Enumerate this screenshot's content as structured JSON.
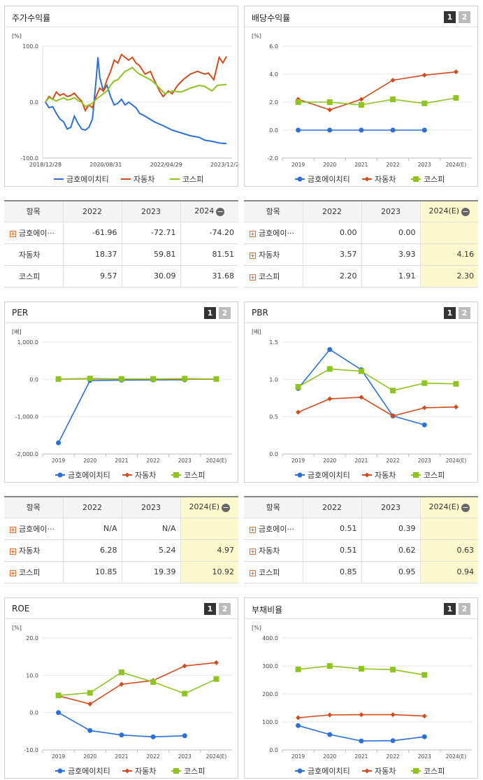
{
  "charts": [
    {
      "title": "주가수익률",
      "unit": "[%]",
      "buttons": [],
      "type": "line",
      "xlabels": [
        "2018/12/28",
        "2020/08/31",
        "2022/04/29",
        "2023/12/28"
      ],
      "ylim": [
        -100,
        100
      ],
      "yticks": [
        "100.0",
        "0.0",
        "-100.0"
      ],
      "legend": [
        "금호에이치티",
        "자동차",
        "코스피"
      ],
      "series": [
        {
          "name": "금호에이치티",
          "color": "#2b6fd8",
          "points": [
            [
              0,
              0
            ],
            [
              0.02,
              -10
            ],
            [
              0.04,
              -8
            ],
            [
              0.06,
              -20
            ],
            [
              0.08,
              -30
            ],
            [
              0.1,
              -35
            ],
            [
              0.12,
              -48
            ],
            [
              0.14,
              -45
            ],
            [
              0.16,
              -25
            ],
            [
              0.18,
              -38
            ],
            [
              0.2,
              -48
            ],
            [
              0.22,
              -50
            ],
            [
              0.24,
              -45
            ],
            [
              0.26,
              -30
            ],
            [
              0.28,
              40
            ],
            [
              0.29,
              80
            ],
            [
              0.3,
              45
            ],
            [
              0.32,
              20
            ],
            [
              0.34,
              30
            ],
            [
              0.36,
              10
            ],
            [
              0.38,
              -5
            ],
            [
              0.4,
              -2
            ],
            [
              0.42,
              5
            ],
            [
              0.44,
              -5
            ],
            [
              0.46,
              0
            ],
            [
              0.5,
              -10
            ],
            [
              0.52,
              -20
            ],
            [
              0.55,
              -25
            ],
            [
              0.6,
              -35
            ],
            [
              0.65,
              -42
            ],
            [
              0.7,
              -50
            ],
            [
              0.75,
              -55
            ],
            [
              0.8,
              -60
            ],
            [
              0.85,
              -63
            ],
            [
              0.88,
              -68
            ],
            [
              0.92,
              -70
            ],
            [
              0.96,
              -73
            ],
            [
              1,
              -74
            ]
          ]
        },
        {
          "name": "자동차",
          "color": "#d44a1a",
          "points": [
            [
              0,
              0
            ],
            [
              0.02,
              10
            ],
            [
              0.04,
              5
            ],
            [
              0.06,
              18
            ],
            [
              0.08,
              12
            ],
            [
              0.1,
              15
            ],
            [
              0.12,
              10
            ],
            [
              0.14,
              12
            ],
            [
              0.16,
              16
            ],
            [
              0.18,
              8
            ],
            [
              0.2,
              2
            ],
            [
              0.22,
              -15
            ],
            [
              0.24,
              -5
            ],
            [
              0.26,
              -10
            ],
            [
              0.28,
              10
            ],
            [
              0.3,
              25
            ],
            [
              0.32,
              20
            ],
            [
              0.34,
              40
            ],
            [
              0.36,
              55
            ],
            [
              0.38,
              75
            ],
            [
              0.4,
              70
            ],
            [
              0.42,
              85
            ],
            [
              0.44,
              80
            ],
            [
              0.46,
              75
            ],
            [
              0.48,
              80
            ],
            [
              0.5,
              70
            ],
            [
              0.52,
              65
            ],
            [
              0.55,
              50
            ],
            [
              0.58,
              55
            ],
            [
              0.6,
              40
            ],
            [
              0.63,
              20
            ],
            [
              0.65,
              10
            ],
            [
              0.68,
              20
            ],
            [
              0.7,
              15
            ],
            [
              0.73,
              30
            ],
            [
              0.76,
              40
            ],
            [
              0.8,
              50
            ],
            [
              0.84,
              55
            ],
            [
              0.88,
              50
            ],
            [
              0.9,
              52
            ],
            [
              0.93,
              40
            ],
            [
              0.96,
              80
            ],
            [
              0.98,
              70
            ],
            [
              1,
              81.5
            ]
          ]
        },
        {
          "name": "코스피",
          "color": "#8fc31f",
          "points": [
            [
              0,
              0
            ],
            [
              0.02,
              8
            ],
            [
              0.04,
              5
            ],
            [
              0.06,
              2
            ],
            [
              0.08,
              5
            ],
            [
              0.1,
              8
            ],
            [
              0.12,
              4
            ],
            [
              0.14,
              5
            ],
            [
              0.16,
              8
            ],
            [
              0.18,
              3
            ],
            [
              0.2,
              0
            ],
            [
              0.22,
              -8
            ],
            [
              0.24,
              -5
            ],
            [
              0.26,
              -2
            ],
            [
              0.28,
              5
            ],
            [
              0.3,
              10
            ],
            [
              0.32,
              15
            ],
            [
              0.34,
              20
            ],
            [
              0.36,
              30
            ],
            [
              0.38,
              38
            ],
            [
              0.4,
              40
            ],
            [
              0.42,
              48
            ],
            [
              0.44,
              55
            ],
            [
              0.46,
              58
            ],
            [
              0.48,
              62
            ],
            [
              0.5,
              55
            ],
            [
              0.52,
              50
            ],
            [
              0.55,
              45
            ],
            [
              0.58,
              40
            ],
            [
              0.6,
              35
            ],
            [
              0.63,
              25
            ],
            [
              0.66,
              15
            ],
            [
              0.7,
              20
            ],
            [
              0.75,
              18
            ],
            [
              0.8,
              25
            ],
            [
              0.85,
              30
            ],
            [
              0.88,
              28
            ],
            [
              0.92,
              20
            ],
            [
              0.95,
              30
            ],
            [
              1,
              31.7
            ]
          ]
        }
      ]
    },
    {
      "title": "배당수익률",
      "unit": "[%]",
      "buttons": [
        "1",
        "2"
      ],
      "type": "line",
      "xlabels": [
        "2019",
        "2020",
        "2021",
        "2022",
        "2023",
        "2024(E)"
      ],
      "ylim": [
        -2,
        6
      ],
      "yticks": [
        "6.0",
        "4.0",
        "2.0",
        "0.0",
        "-2.0"
      ],
      "legend": [
        "금호에이치티",
        "자동차",
        "코스피"
      ],
      "series": [
        {
          "name": "금호에이치티",
          "color": "#2b6fd8",
          "marker": "circle",
          "values": [
            0,
            0,
            0,
            0,
            0,
            null
          ]
        },
        {
          "name": "자동차",
          "color": "#d44a1a",
          "marker": "diamond",
          "values": [
            2.2,
            1.45,
            2.2,
            3.57,
            3.93,
            4.16
          ]
        },
        {
          "name": "코스피",
          "color": "#8fc31f",
          "marker": "square",
          "values": [
            2.0,
            2.0,
            1.8,
            2.2,
            1.91,
            2.3
          ]
        }
      ]
    },
    {
      "title": "PER",
      "unit": "[배]",
      "buttons": [
        "1",
        "2"
      ],
      "type": "line",
      "xlabels": [
        "2019",
        "2020",
        "2021",
        "2022",
        "2023",
        "2024(E)"
      ],
      "ylim": [
        -2000,
        1000
      ],
      "yticks": [
        "1,000.0",
        "0.0",
        "-1,000.0",
        "-2,000.0"
      ],
      "legend": [
        "금호에이치티",
        "자동차",
        "코스피"
      ],
      "series": [
        {
          "name": "금호에이치티",
          "color": "#2b6fd8",
          "marker": "circle",
          "values": [
            -1700,
            -30,
            -20,
            -15,
            -10,
            null
          ]
        },
        {
          "name": "자동차",
          "color": "#d44a1a",
          "marker": "diamond",
          "values": [
            5,
            15,
            8,
            6.28,
            5.24,
            4.97
          ]
        },
        {
          "name": "코스피",
          "color": "#8fc31f",
          "marker": "square",
          "values": [
            10,
            25,
            12,
            10.85,
            19.39,
            10.92
          ]
        }
      ]
    },
    {
      "title": "PBR",
      "unit": "[배]",
      "buttons": [
        "1",
        "2"
      ],
      "type": "line",
      "xlabels": [
        "2019",
        "2020",
        "2021",
        "2022",
        "2023",
        "2024(E)"
      ],
      "ylim": [
        0,
        1.5
      ],
      "yticks": [
        "1.5",
        "1.0",
        "0.5",
        "0.0"
      ],
      "legend": [
        "금호에이치티",
        "자동차",
        "코스피"
      ],
      "series": [
        {
          "name": "금호에이치티",
          "color": "#2b6fd8",
          "marker": "circle",
          "values": [
            0.88,
            1.4,
            1.13,
            0.51,
            0.39,
            null
          ]
        },
        {
          "name": "자동차",
          "color": "#d44a1a",
          "marker": "diamond",
          "values": [
            0.56,
            0.74,
            0.76,
            0.51,
            0.62,
            0.63
          ]
        },
        {
          "name": "코스피",
          "color": "#8fc31f",
          "marker": "square",
          "values": [
            0.9,
            1.14,
            1.11,
            0.85,
            0.95,
            0.94
          ]
        }
      ]
    },
    {
      "title": "ROE",
      "unit": "[%]",
      "buttons": [
        "1",
        "2"
      ],
      "type": "line",
      "xlabels": [
        "2019",
        "2020",
        "2021",
        "2022",
        "2023",
        "2024(E)"
      ],
      "ylim": [
        -10,
        20
      ],
      "yticks": [
        "20.0",
        "10.0",
        "0.0",
        "-10.0"
      ],
      "legend": [
        "금호에이치티",
        "자동차",
        "코스피"
      ],
      "series": [
        {
          "name": "금호에이치티",
          "color": "#2b6fd8",
          "marker": "circle",
          "values": [
            0,
            -4.8,
            -6,
            -6.5,
            -6.2,
            null
          ]
        },
        {
          "name": "자동차",
          "color": "#d44a1a",
          "marker": "diamond",
          "values": [
            4.5,
            2.3,
            7.6,
            8.6,
            12.5,
            13.4
          ]
        },
        {
          "name": "코스피",
          "color": "#8fc31f",
          "marker": "square",
          "values": [
            4.6,
            5.3,
            10.8,
            8.2,
            5.1,
            9.0
          ]
        }
      ]
    },
    {
      "title": "부채비율",
      "unit": "[%]",
      "buttons": [
        "1",
        "2"
      ],
      "type": "line",
      "xlabels": [
        "2019",
        "2020",
        "2021",
        "2022",
        "2023",
        "2024(E)"
      ],
      "ylim": [
        0,
        400
      ],
      "yticks": [
        "400.0",
        "300.0",
        "200.0",
        "100.0",
        "0.0"
      ],
      "legend": [
        "금호에이치티",
        "자동차",
        "코스피"
      ],
      "series": [
        {
          "name": "금호에이치티",
          "color": "#2b6fd8",
          "marker": "circle",
          "values": [
            87,
            55,
            32,
            33,
            47,
            null
          ]
        },
        {
          "name": "자동차",
          "color": "#d44a1a",
          "marker": "diamond",
          "values": [
            115,
            125,
            126,
            126,
            121,
            null
          ]
        },
        {
          "name": "코스피",
          "color": "#8fc31f",
          "marker": "square",
          "values": [
            288,
            300,
            290,
            287,
            268,
            null
          ]
        }
      ]
    }
  ],
  "tables": [
    {
      "header": [
        "항목",
        "2022",
        "2023",
        "2024"
      ],
      "rows": [
        {
          "name": "금호에이···",
          "plus": true,
          "vals": [
            "-61.96",
            "-72.71",
            "-74.20"
          ]
        },
        {
          "name": "자동차",
          "plus": false,
          "vals": [
            "18.37",
            "59.81",
            "81.51"
          ]
        },
        {
          "name": "코스피",
          "plus": false,
          "vals": [
            "9.57",
            "30.09",
            "31.68"
          ]
        }
      ],
      "highlight": false
    },
    {
      "header": [
        "항목",
        "2022",
        "2023",
        "2024(E)"
      ],
      "rows": [
        {
          "name": "금호에이···",
          "plus": true,
          "vals": [
            "0.00",
            "0.00",
            ""
          ]
        },
        {
          "name": "자동차",
          "plus": true,
          "vals": [
            "3.57",
            "3.93",
            "4.16"
          ]
        },
        {
          "name": "코스피",
          "plus": true,
          "vals": [
            "2.20",
            "1.91",
            "2.30"
          ]
        }
      ],
      "highlight": true
    },
    {
      "header": [
        "항목",
        "2022",
        "2023",
        "2024(E)"
      ],
      "rows": [
        {
          "name": "금호에이···",
          "plus": true,
          "vals": [
            "N/A",
            "N/A",
            ""
          ]
        },
        {
          "name": "자동차",
          "plus": true,
          "vals": [
            "6.28",
            "5.24",
            "4.97"
          ]
        },
        {
          "name": "코스피",
          "plus": true,
          "vals": [
            "10.85",
            "19.39",
            "10.92"
          ]
        }
      ],
      "highlight": true
    },
    {
      "header": [
        "항목",
        "2022",
        "2023",
        "2024(E)"
      ],
      "rows": [
        {
          "name": "금호에이···",
          "plus": true,
          "vals": [
            "0.51",
            "0.39",
            ""
          ]
        },
        {
          "name": "자동차",
          "plus": true,
          "vals": [
            "0.51",
            "0.62",
            "0.63"
          ]
        },
        {
          "name": "코스피",
          "plus": true,
          "vals": [
            "0.85",
            "0.95",
            "0.94"
          ]
        }
      ],
      "highlight": true
    }
  ]
}
